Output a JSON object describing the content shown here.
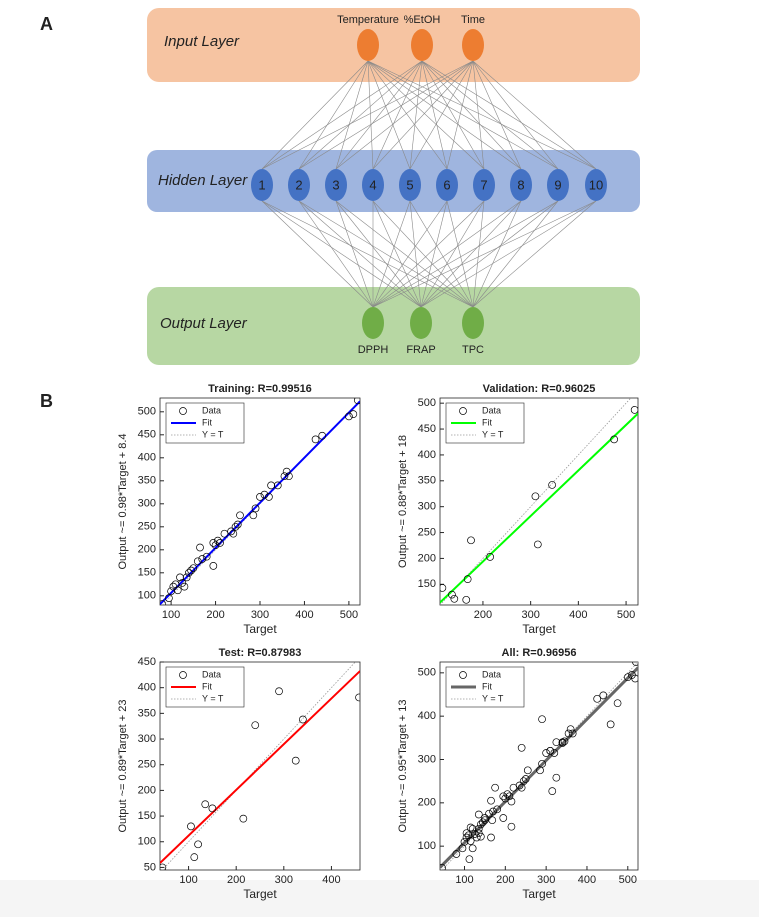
{
  "diagram": {
    "label": "A",
    "layers": [
      {
        "name": "Input Layer",
        "nodes": [
          "Temperature",
          "%EtOH",
          "Time"
        ]
      },
      {
        "name": "Hidden Layer",
        "nodes": [
          "1",
          "2",
          "3",
          "4",
          "5",
          "6",
          "7",
          "8",
          "9",
          "10"
        ]
      },
      {
        "name": "Output Layer",
        "nodes": [
          "DPPH",
          "FRAP",
          "TPC"
        ]
      }
    ]
  },
  "figure_b": {
    "label": "B"
  },
  "chart_data": [
    {
      "type": "scatter",
      "title": "Training: R=0.99516",
      "xlabel": "Target",
      "ylabel": "Output ~= 0.98*Target + 8.4",
      "xlim": [
        75,
        525
      ],
      "ylim": [
        80,
        530
      ],
      "xticks": [
        100,
        200,
        300,
        400,
        500
      ],
      "yticks": [
        100,
        150,
        200,
        250,
        300,
        350,
        400,
        450,
        500
      ],
      "legend": "upper left",
      "series": [
        {
          "name": "Data",
          "type": "scatter",
          "color": "#000000",
          "x": [
            80,
            95,
            100,
            105,
            110,
            115,
            120,
            125,
            130,
            135,
            140,
            145,
            150,
            160,
            165,
            170,
            180,
            195,
            195,
            200,
            205,
            210,
            220,
            235,
            240,
            245,
            250,
            255,
            285,
            290,
            300,
            310,
            320,
            325,
            340,
            355,
            360,
            365,
            425,
            440,
            500,
            510,
            520
          ],
          "values": [
            82,
            95,
            110,
            120,
            125,
            112,
            140,
            128,
            120,
            140,
            150,
            155,
            160,
            175,
            205,
            180,
            185,
            165,
            215,
            210,
            220,
            215,
            235,
            240,
            235,
            250,
            255,
            275,
            275,
            290,
            315,
            320,
            315,
            340,
            340,
            360,
            370,
            360,
            440,
            448,
            490,
            495,
            525
          ]
        },
        {
          "name": "Fit",
          "type": "line",
          "color": "#0000ff",
          "x": [
            75,
            525
          ],
          "values": [
            81.9,
            522.9
          ]
        },
        {
          "name": "Y = T",
          "type": "line",
          "style": "dotted",
          "color": "#999999",
          "x": [
            75,
            525
          ],
          "values": [
            75,
            525
          ]
        }
      ]
    },
    {
      "type": "scatter",
      "title": "Validation: R=0.96025",
      "xlabel": "Target",
      "ylabel": "Output ~= 0.88*Target + 18",
      "xlim": [
        110,
        525
      ],
      "ylim": [
        110,
        510
      ],
      "xticks": [
        200,
        300,
        400,
        500
      ],
      "yticks": [
        150,
        200,
        250,
        300,
        350,
        400,
        450,
        500
      ],
      "legend": "upper left",
      "series": [
        {
          "name": "Data",
          "type": "scatter",
          "color": "#000000",
          "x": [
            115,
            135,
            140,
            165,
            168,
            175,
            215,
            310,
            315,
            345,
            475,
            518
          ],
          "values": [
            143,
            130,
            122,
            120,
            160,
            235,
            203,
            320,
            227,
            342,
            430,
            487
          ]
        },
        {
          "name": "Fit",
          "type": "line",
          "color": "#00ff00",
          "x": [
            110,
            525
          ],
          "values": [
            114.8,
            480
          ]
        },
        {
          "name": "Y = T",
          "type": "line",
          "style": "dotted",
          "color": "#999999",
          "x": [
            110,
            525
          ],
          "values": [
            110,
            525
          ]
        }
      ]
    },
    {
      "type": "scatter",
      "title": "Test: R=0.87983",
      "xlabel": "Target",
      "ylabel": "Output ~= 0.89*Target + 23",
      "xlim": [
        40,
        460
      ],
      "ylim": [
        45,
        450
      ],
      "xticks": [
        100,
        200,
        300,
        400
      ],
      "yticks": [
        50,
        100,
        150,
        200,
        250,
        300,
        350,
        400,
        450
      ],
      "legend": "upper left",
      "series": [
        {
          "name": "Data",
          "type": "scatter",
          "color": "#000000",
          "x": [
            45,
            105,
            112,
            120,
            135,
            150,
            215,
            240,
            290,
            325,
            340,
            458
          ],
          "values": [
            50,
            130,
            70,
            95,
            173,
            165,
            145,
            327,
            393,
            258,
            338,
            381
          ]
        },
        {
          "name": "Fit",
          "type": "line",
          "color": "#ff0000",
          "x": [
            40,
            460
          ],
          "values": [
            58.6,
            432.4
          ]
        },
        {
          "name": "Y = T",
          "type": "line",
          "style": "dotted",
          "color": "#999999",
          "x": [
            40,
            460
          ],
          "values": [
            40,
            460
          ]
        }
      ]
    },
    {
      "type": "scatter",
      "title": "All: R=0.96956",
      "xlabel": "Target",
      "ylabel": "Output ~= 0.95*Target + 13",
      "xlim": [
        40,
        525
      ],
      "ylim": [
        45,
        525
      ],
      "xticks": [
        100,
        200,
        300,
        400,
        500
      ],
      "yticks": [
        100,
        200,
        300,
        400,
        500
      ],
      "legend": "upper left",
      "series": [
        {
          "name": "Data",
          "type": "scatter",
          "color": "#000000",
          "x": [
            80,
            95,
            100,
            105,
            110,
            115,
            120,
            125,
            130,
            135,
            140,
            145,
            150,
            160,
            165,
            170,
            180,
            195,
            195,
            200,
            205,
            210,
            220,
            235,
            240,
            245,
            250,
            255,
            285,
            290,
            300,
            310,
            320,
            325,
            340,
            355,
            360,
            365,
            425,
            440,
            500,
            510,
            520,
            115,
            135,
            140,
            165,
            168,
            175,
            215,
            310,
            315,
            345,
            475,
            518,
            45,
            105,
            112,
            120,
            135,
            150,
            215,
            240,
            290,
            325,
            340,
            458
          ],
          "values": [
            82,
            95,
            110,
            120,
            125,
            112,
            140,
            128,
            120,
            140,
            150,
            155,
            160,
            175,
            205,
            180,
            185,
            165,
            215,
            210,
            220,
            215,
            235,
            240,
            235,
            250,
            255,
            275,
            275,
            290,
            315,
            320,
            315,
            340,
            340,
            360,
            370,
            360,
            440,
            448,
            490,
            495,
            525,
            143,
            130,
            122,
            120,
            160,
            235,
            203,
            320,
            227,
            342,
            430,
            487,
            50,
            130,
            70,
            95,
            173,
            165,
            145,
            327,
            393,
            258,
            338,
            381
          ]
        },
        {
          "name": "Fit",
          "type": "line",
          "color": "#666666",
          "width": 3,
          "x": [
            40,
            525
          ],
          "values": [
            51,
            511.75
          ]
        },
        {
          "name": "Y = T",
          "type": "line",
          "style": "dotted",
          "color": "#999999",
          "x": [
            40,
            525
          ],
          "values": [
            40,
            525
          ]
        }
      ]
    }
  ]
}
